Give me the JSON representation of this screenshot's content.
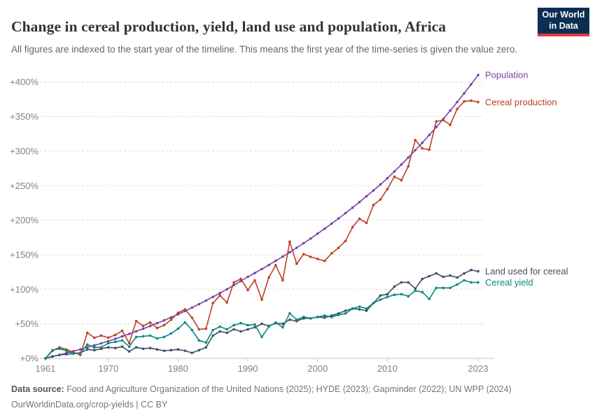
{
  "header": {
    "title": "Change in cereal production, yield, land use and population, Africa",
    "subtitle": "All figures are indexed to the start year of the timeline. This means the first year of the time-series is given the value zero.",
    "logo": {
      "line1": "Our World",
      "line2": "in Data",
      "bg_color": "#0d2e54",
      "bar_color": "#dc3d43"
    }
  },
  "chart_data": {
    "type": "line",
    "title": "Change in cereal production, yield, land use and population, Africa",
    "xlabel": "",
    "ylabel": "",
    "x_ticks": [
      1961,
      1970,
      1980,
      1990,
      2000,
      2010,
      2023
    ],
    "x_tick_labels": [
      "1961",
      "1970",
      "1980",
      "1990",
      "2000",
      "2010",
      "2023"
    ],
    "y_ticks": [
      0,
      50,
      100,
      150,
      200,
      250,
      300,
      350,
      400
    ],
    "y_tick_labels": [
      "+0%",
      "+50%",
      "+100%",
      "+150%",
      "+200%",
      "+250%",
      "+300%",
      "+350%",
      "+400%"
    ],
    "ylim": [
      0,
      415
    ],
    "xlim": [
      1961,
      2023
    ],
    "grid": "dashed-horizontal",
    "legend_position": "end-of-line",
    "x": [
      1961,
      1962,
      1963,
      1964,
      1965,
      1966,
      1967,
      1968,
      1969,
      1970,
      1971,
      1972,
      1973,
      1974,
      1975,
      1976,
      1977,
      1978,
      1979,
      1980,
      1981,
      1982,
      1983,
      1984,
      1985,
      1986,
      1987,
      1988,
      1989,
      1990,
      1991,
      1992,
      1993,
      1994,
      1995,
      1996,
      1997,
      1998,
      1999,
      2000,
      2001,
      2002,
      2003,
      2004,
      2005,
      2006,
      2007,
      2008,
      2009,
      2010,
      2011,
      2012,
      2013,
      2014,
      2015,
      2016,
      2017,
      2018,
      2019,
      2020,
      2021,
      2022,
      2023
    ],
    "series": [
      {
        "name": "Population",
        "color": "#7745a2",
        "values": [
          0,
          2.5,
          5.1,
          7.7,
          10.4,
          13.1,
          16.0,
          18.9,
          21.8,
          24.9,
          28.3,
          31.8,
          35.5,
          39.2,
          43.0,
          46.9,
          51.0,
          55.1,
          59.4,
          63.8,
          68.6,
          73.5,
          78.5,
          83.7,
          89.0,
          94.5,
          100.1,
          105.9,
          111.9,
          118.0,
          123.6,
          129.3,
          135.2,
          141.2,
          147.3,
          153.6,
          160.1,
          166.7,
          173.5,
          180.5,
          187.6,
          195.0,
          202.5,
          210.2,
          218.1,
          226.2,
          234.6,
          243.1,
          251.8,
          260.8,
          270.6,
          280.6,
          290.8,
          301.4,
          312.2,
          323.4,
          334.8,
          346.5,
          358.6,
          371.0,
          383.7,
          396.7,
          410.1
        ]
      },
      {
        "name": "Cereal production",
        "color": "#bc3f26",
        "values": [
          0,
          11,
          16,
          13,
          9,
          5,
          37,
          30,
          33,
          30,
          34,
          40,
          22,
          54,
          47,
          52,
          44,
          48,
          56,
          66,
          71,
          59,
          42,
          43,
          80,
          91,
          81,
          110,
          115,
          99,
          113,
          85,
          117,
          135,
          113,
          169,
          137,
          151,
          147,
          144,
          141,
          152,
          160,
          170,
          190,
          202,
          196,
          222,
          230,
          245,
          263,
          258,
          278,
          316,
          304,
          302,
          343,
          345,
          338,
          361,
          372,
          373,
          371
        ]
      },
      {
        "name": "Land used for cereal",
        "color": "#3f5067",
        "values": [
          0,
          3,
          5,
          6,
          7,
          8,
          13,
          12,
          14,
          16,
          15,
          17,
          10,
          16,
          14,
          15,
          13,
          11,
          12,
          13,
          11,
          8,
          12,
          16,
          33,
          39,
          37,
          42,
          39,
          42,
          45,
          50,
          47,
          51,
          50,
          56,
          54,
          58,
          58,
          60,
          59,
          62,
          65,
          69,
          72,
          71,
          69,
          80,
          91,
          93,
          104,
          110,
          110,
          101,
          115,
          119,
          123,
          118,
          120,
          117,
          123,
          128,
          126
        ]
      },
      {
        "name": "Cereal yield",
        "color": "#068a7e",
        "values": [
          0,
          12,
          14,
          11,
          7,
          8,
          20,
          16,
          16,
          22,
          24,
          26,
          17,
          31,
          32,
          33,
          29,
          31,
          36,
          43,
          52,
          41,
          26,
          23,
          41,
          46,
          42,
          48,
          51,
          48,
          49,
          31,
          46,
          52,
          45,
          65,
          56,
          60,
          58,
          60,
          62,
          60,
          63,
          65,
          72,
          75,
          72,
          80,
          85,
          89,
          92,
          93,
          90,
          98,
          96,
          86,
          102,
          102,
          102,
          107,
          113,
          110,
          110
        ]
      }
    ]
  },
  "footer": {
    "source_label": "Data source:",
    "source_text": " Food and Agriculture Organization of the United Nations (2025); HYDE (2023); Gapminder (2022); UN WPP (2024)",
    "link": "OurWorldinData.org/crop-yields | CC BY"
  }
}
